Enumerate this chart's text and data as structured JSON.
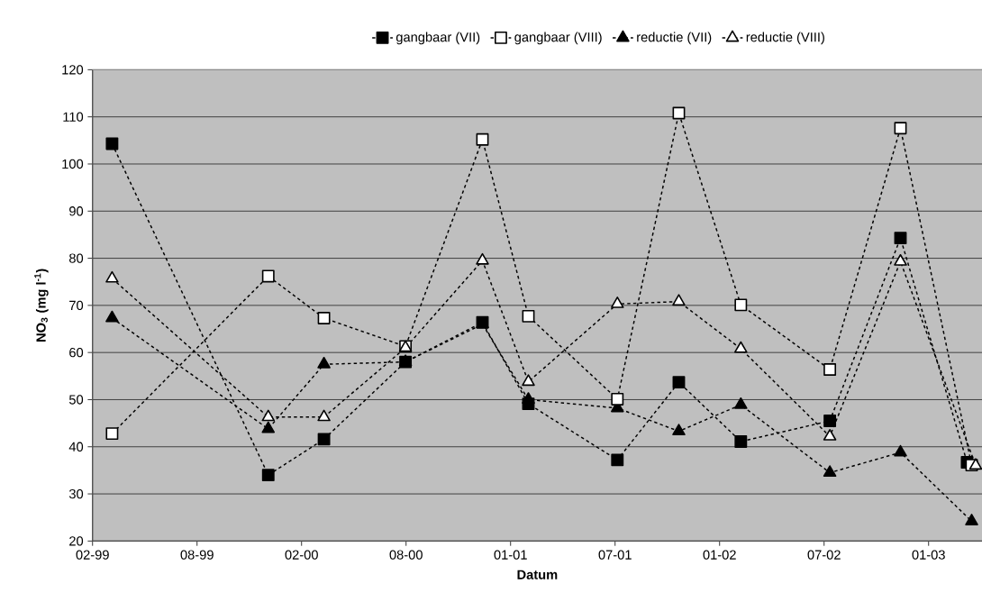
{
  "chart_data": {
    "type": "line",
    "xlabel": "Datum",
    "ylabel": "NO$_{3}$ (mg l$^{-1}$)",
    "x": [
      "1999-03-08",
      "1999-12-05",
      "2000-03-11",
      "2000-07-31",
      "2000-12-12",
      "2001-03-02",
      "2001-08-04",
      "2001-11-19",
      "2002-03-07",
      "2002-08-09",
      "2002-12-10",
      "2003-04-13"
    ],
    "series": [
      {
        "name": "gangbaar (VII)",
        "color": "#000000",
        "marker": "square",
        "x": [
          "1999-03-08",
          "1999-12-05",
          "2000-03-11",
          "2000-07-31",
          "2000-12-12",
          "2001-03-02",
          "2001-08-04",
          "2001-11-19",
          "2002-03-07",
          "2002-08-09",
          "2002-12-10",
          "2003-04-05"
        ],
        "values": [
          104.3,
          34.0,
          41.6,
          58.0,
          66.4,
          49.1,
          37.2,
          53.7,
          41.1,
          45.5,
          84.3,
          36.7
        ]
      },
      {
        "name": "gangbaar (VIII)",
        "color": "#ffffff",
        "marker": "square",
        "values": [
          42.8,
          76.2,
          67.3,
          61.3,
          105.2,
          67.7,
          50.1,
          110.8,
          70.1,
          56.4,
          107.6,
          36.1
        ]
      },
      {
        "name": "reductie (VII)",
        "color": "#000000",
        "marker": "triangle",
        "values": [
          67.3,
          43.8,
          57.5,
          58.0,
          66.0,
          50.0,
          48.2,
          43.3,
          48.9,
          34.5,
          38.8,
          24.2
        ]
      },
      {
        "name": "reductie (VIII)",
        "color": "#ffffff",
        "marker": "triangle",
        "x": [
          "1999-03-08",
          "1999-12-05",
          "2000-03-11",
          "2000-07-31",
          "2000-12-12",
          "2001-03-02",
          "2001-08-04",
          "2001-11-19",
          "2002-03-07",
          "2002-08-09",
          "2002-12-10",
          "2003-04-20"
        ],
        "values": [
          75.7,
          46.3,
          46.3,
          61.0,
          79.5,
          53.8,
          70.3,
          70.8,
          60.8,
          42.2,
          79.3,
          36.0
        ]
      }
    ],
    "xlim": [
      "1999-02-02",
      "2003-05-01"
    ],
    "xticks": [
      {
        "value": "1999-02-02",
        "label": "02-99"
      },
      {
        "value": "1999-08-03",
        "label": "08-99"
      },
      {
        "value": "2000-02-01",
        "label": "02-00"
      },
      {
        "value": "2000-08-01",
        "label": "08-00"
      },
      {
        "value": "2001-01-30",
        "label": "01-01"
      },
      {
        "value": "2001-07-31",
        "label": "07-01"
      },
      {
        "value": "2002-01-29",
        "label": "01-02"
      },
      {
        "value": "2002-07-30",
        "label": "07-02"
      },
      {
        "value": "2003-01-28",
        "label": "01-03"
      }
    ],
    "ylim": [
      20,
      120
    ],
    "yticks": [
      20,
      30,
      40,
      50,
      60,
      70,
      80,
      90,
      100,
      110,
      120
    ],
    "grid": "y",
    "legend": "top",
    "line_style": "dashed"
  }
}
